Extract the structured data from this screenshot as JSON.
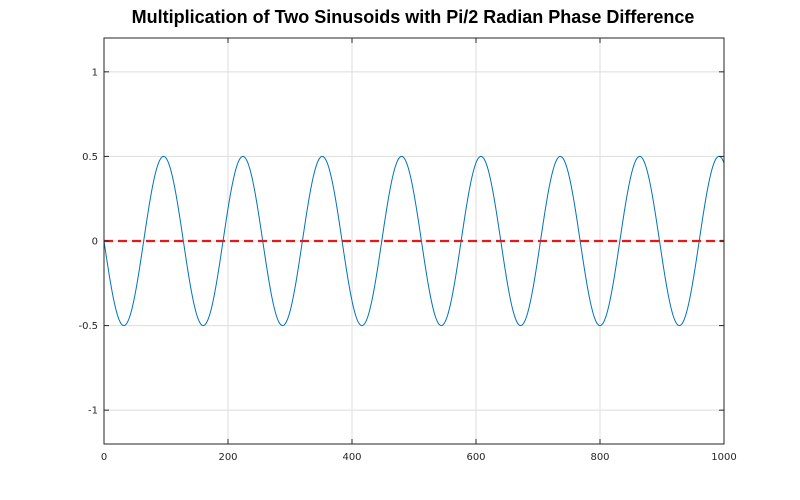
{
  "chart_data": {
    "type": "line",
    "title": "Multiplication of Two Sinusoids with Pi/2 Radian Phase Difference",
    "xlabel": "",
    "ylabel": "",
    "xlim": [
      0,
      1000
    ],
    "ylim": [
      -1.2,
      1.2
    ],
    "xticks": [
      0,
      200,
      400,
      600,
      800,
      1000
    ],
    "xtick_labels": [
      "0",
      "200",
      "400",
      "600",
      "800",
      "1000"
    ],
    "yticks": [
      -1,
      -0.5,
      0,
      0.5,
      1
    ],
    "ytick_labels": [
      "-1",
      "-0.5",
      "0",
      "0.5",
      "1"
    ],
    "grid": true,
    "legend": "none",
    "series": [
      {
        "function": "y = -0.5*sin(2*pi*x/128)",
        "amplitude": 0.5,
        "period": 128,
        "phase_sign": -1,
        "x_start": 0,
        "x_end": 1000,
        "color": "#0072bd",
        "style": "solid"
      },
      {
        "function": "y = 0",
        "x": [
          0,
          1000
        ],
        "values": [
          0,
          0
        ],
        "color": "#e31a1c",
        "style": "dashed"
      }
    ]
  }
}
